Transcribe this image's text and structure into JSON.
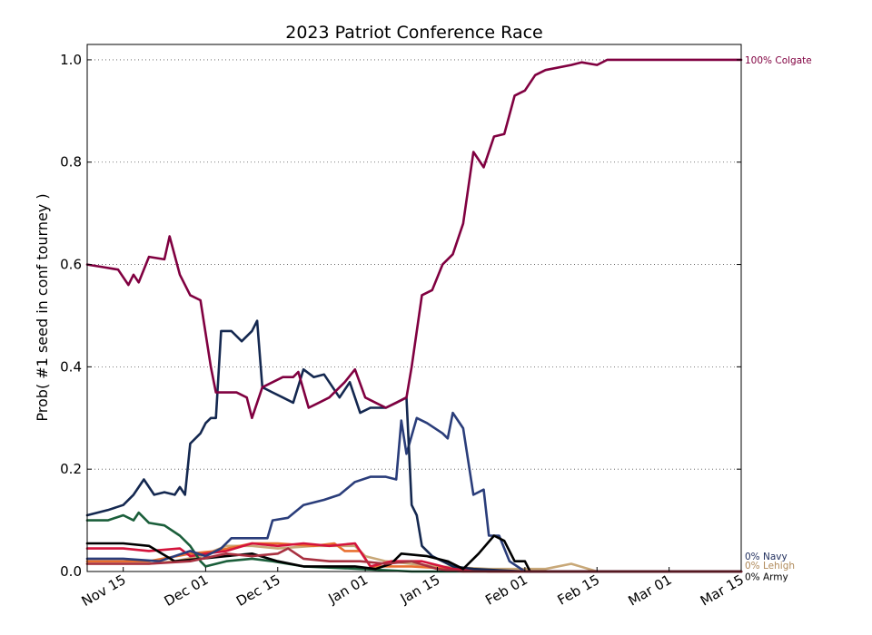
{
  "chart_data": {
    "type": "line",
    "title": "2023 Patriot Conference Race",
    "xlabel": "",
    "ylabel": "Prob( #1 seed in conf tourney )",
    "xlim": [
      "2022-11-08",
      "2023-03-15"
    ],
    "ylim": [
      0,
      1.03
    ],
    "grid": "y-dotted",
    "xticks": [
      {
        "date": "2022-11-15",
        "label": "Nov 15"
      },
      {
        "date": "2022-12-01",
        "label": "Dec 01"
      },
      {
        "date": "2022-12-15",
        "label": "Dec 15"
      },
      {
        "date": "2023-01-01",
        "label": "Jan 01"
      },
      {
        "date": "2023-01-15",
        "label": "Jan 15"
      },
      {
        "date": "2023-02-01",
        "label": "Feb 01"
      },
      {
        "date": "2023-02-15",
        "label": "Feb 15"
      },
      {
        "date": "2023-03-01",
        "label": "Mar 01"
      },
      {
        "date": "2023-03-15",
        "label": "Mar 15"
      }
    ],
    "yticks": [
      {
        "value": 0.0,
        "label": "0.0"
      },
      {
        "value": 0.2,
        "label": "0.2"
      },
      {
        "value": 0.4,
        "label": "0.4"
      },
      {
        "value": 0.6,
        "label": "0.6"
      },
      {
        "value": 0.8,
        "label": "0.8"
      },
      {
        "value": 1.0,
        "label": "1.0"
      }
    ],
    "end_labels": [
      {
        "text": "100% Colgate",
        "value": 1.0,
        "color": "#800040"
      },
      {
        "text": "0% Navy",
        "value": 0.03,
        "color": "#1f2d5c"
      },
      {
        "text": "0% Lehigh",
        "value": 0.012,
        "color": "#b08a5a"
      },
      {
        "text": "0% Army",
        "value": -0.006,
        "color": "#000000"
      }
    ],
    "series": [
      {
        "color": "#c8a878",
        "values": [
          [
            "2022-11-08",
            0.015
          ],
          [
            "2022-11-20",
            0.015
          ],
          [
            "2022-11-25",
            0.02
          ],
          [
            "2022-11-30",
            0.03
          ],
          [
            "2022-12-05",
            0.05
          ],
          [
            "2022-12-10",
            0.05
          ],
          [
            "2022-12-15",
            0.045
          ],
          [
            "2022-12-22",
            0.05
          ],
          [
            "2022-12-30",
            0.05
          ],
          [
            "2023-01-01",
            0.03
          ],
          [
            "2023-01-05",
            0.02
          ],
          [
            "2023-01-15",
            0.01
          ],
          [
            "2023-01-25",
            0.005
          ],
          [
            "2023-02-05",
            0.005
          ],
          [
            "2023-02-10",
            0.015
          ],
          [
            "2023-02-15",
            0.0
          ],
          [
            "2023-03-15",
            0.0
          ]
        ]
      },
      {
        "color": "#e87030",
        "values": [
          [
            "2022-11-08",
            0.02
          ],
          [
            "2022-11-20",
            0.02
          ],
          [
            "2022-11-28",
            0.035
          ],
          [
            "2022-12-03",
            0.04
          ],
          [
            "2022-12-10",
            0.055
          ],
          [
            "2022-12-15",
            0.055
          ],
          [
            "2022-12-22",
            0.05
          ],
          [
            "2022-12-26",
            0.055
          ],
          [
            "2022-12-28",
            0.04
          ],
          [
            "2022-12-31",
            0.04
          ],
          [
            "2023-01-02",
            0.01
          ],
          [
            "2023-01-10",
            0.01
          ],
          [
            "2023-01-18",
            0.005
          ],
          [
            "2023-01-25",
            0.0
          ],
          [
            "2023-03-15",
            0.0
          ]
        ]
      },
      {
        "color": "#d4143c",
        "values": [
          [
            "2022-11-08",
            0.045
          ],
          [
            "2022-11-15",
            0.045
          ],
          [
            "2022-11-20",
            0.04
          ],
          [
            "2022-11-26",
            0.045
          ],
          [
            "2022-11-28",
            0.03
          ],
          [
            "2022-12-01",
            0.035
          ],
          [
            "2022-12-05",
            0.04
          ],
          [
            "2022-12-10",
            0.055
          ],
          [
            "2022-12-15",
            0.05
          ],
          [
            "2022-12-20",
            0.055
          ],
          [
            "2022-12-25",
            0.05
          ],
          [
            "2022-12-30",
            0.055
          ],
          [
            "2023-01-02",
            0.01
          ],
          [
            "2023-01-06",
            0.02
          ],
          [
            "2023-01-12",
            0.02
          ],
          [
            "2023-01-18",
            0.005
          ],
          [
            "2023-01-25",
            0.0
          ],
          [
            "2023-03-15",
            0.0
          ]
        ]
      },
      {
        "color": "#1a5e3a",
        "values": [
          [
            "2022-11-08",
            0.1
          ],
          [
            "2022-11-12",
            0.1
          ],
          [
            "2022-11-15",
            0.11
          ],
          [
            "2022-11-17",
            0.1
          ],
          [
            "2022-11-18",
            0.115
          ],
          [
            "2022-11-20",
            0.095
          ],
          [
            "2022-11-23",
            0.09
          ],
          [
            "2022-11-26",
            0.07
          ],
          [
            "2022-11-28",
            0.05
          ],
          [
            "2022-11-30",
            0.02
          ],
          [
            "2022-12-01",
            0.01
          ],
          [
            "2022-12-05",
            0.02
          ],
          [
            "2022-12-10",
            0.025
          ],
          [
            "2022-12-14",
            0.02
          ],
          [
            "2022-12-20",
            0.01
          ],
          [
            "2022-12-31",
            0.005
          ],
          [
            "2023-01-10",
            0.0
          ],
          [
            "2023-03-15",
            0.0
          ]
        ]
      },
      {
        "color": "#2a3d7a",
        "values": [
          [
            "2022-11-08",
            0.025
          ],
          [
            "2022-11-15",
            0.025
          ],
          [
            "2022-11-22",
            0.02
          ],
          [
            "2022-11-28",
            0.04
          ],
          [
            "2022-12-01",
            0.03
          ],
          [
            "2022-12-04",
            0.045
          ],
          [
            "2022-12-06",
            0.065
          ],
          [
            "2022-12-10",
            0.065
          ],
          [
            "2022-12-13",
            0.065
          ],
          [
            "2022-12-14",
            0.1
          ],
          [
            "2022-12-17",
            0.105
          ],
          [
            "2022-12-20",
            0.13
          ],
          [
            "2022-12-24",
            0.14
          ],
          [
            "2022-12-27",
            0.15
          ],
          [
            "2022-12-30",
            0.175
          ],
          [
            "2023-01-02",
            0.185
          ],
          [
            "2023-01-05",
            0.185
          ],
          [
            "2023-01-07",
            0.18
          ],
          [
            "2023-01-08",
            0.295
          ],
          [
            "2023-01-09",
            0.23
          ],
          [
            "2023-01-11",
            0.3
          ],
          [
            "2023-01-13",
            0.29
          ],
          [
            "2023-01-16",
            0.27
          ],
          [
            "2023-01-17",
            0.26
          ],
          [
            "2023-01-18",
            0.31
          ],
          [
            "2023-01-20",
            0.28
          ],
          [
            "2023-01-22",
            0.15
          ],
          [
            "2023-01-24",
            0.16
          ],
          [
            "2023-01-25",
            0.07
          ],
          [
            "2023-01-27",
            0.07
          ],
          [
            "2023-01-29",
            0.02
          ],
          [
            "2023-02-01",
            0.0
          ],
          [
            "2023-03-15",
            0.0
          ]
        ]
      },
      {
        "color": "#142850",
        "values": [
          [
            "2022-11-08",
            0.11
          ],
          [
            "2022-11-12",
            0.12
          ],
          [
            "2022-11-15",
            0.13
          ],
          [
            "2022-11-17",
            0.15
          ],
          [
            "2022-11-19",
            0.18
          ],
          [
            "2022-11-21",
            0.15
          ],
          [
            "2022-11-23",
            0.155
          ],
          [
            "2022-11-25",
            0.15
          ],
          [
            "2022-11-26",
            0.165
          ],
          [
            "2022-11-27",
            0.15
          ],
          [
            "2022-11-28",
            0.25
          ],
          [
            "2022-11-30",
            0.27
          ],
          [
            "2022-12-01",
            0.29
          ],
          [
            "2022-12-02",
            0.3
          ],
          [
            "2022-12-03",
            0.3
          ],
          [
            "2022-12-04",
            0.47
          ],
          [
            "2022-12-06",
            0.47
          ],
          [
            "2022-12-08",
            0.45
          ],
          [
            "2022-12-10",
            0.47
          ],
          [
            "2022-12-11",
            0.49
          ],
          [
            "2022-12-12",
            0.36
          ],
          [
            "2022-12-14",
            0.35
          ],
          [
            "2022-12-16",
            0.34
          ],
          [
            "2022-12-18",
            0.33
          ],
          [
            "2022-12-20",
            0.395
          ],
          [
            "2022-12-22",
            0.38
          ],
          [
            "2022-12-24",
            0.385
          ],
          [
            "2022-12-27",
            0.34
          ],
          [
            "2022-12-29",
            0.37
          ],
          [
            "2022-12-31",
            0.31
          ],
          [
            "2023-01-02",
            0.32
          ],
          [
            "2023-01-05",
            0.32
          ],
          [
            "2023-01-07",
            0.33
          ],
          [
            "2023-01-09",
            0.34
          ],
          [
            "2023-01-10",
            0.13
          ],
          [
            "2023-01-11",
            0.11
          ],
          [
            "2023-01-12",
            0.05
          ],
          [
            "2023-01-14",
            0.03
          ],
          [
            "2023-01-16",
            0.02
          ],
          [
            "2023-01-18",
            0.01
          ],
          [
            "2023-01-22",
            0.005
          ],
          [
            "2023-02-01",
            0.0
          ],
          [
            "2023-03-15",
            0.0
          ]
        ]
      },
      {
        "color": "#000000",
        "values": [
          [
            "2022-11-08",
            0.055
          ],
          [
            "2022-11-15",
            0.055
          ],
          [
            "2022-11-20",
            0.05
          ],
          [
            "2022-11-25",
            0.02
          ],
          [
            "2022-11-30",
            0.025
          ],
          [
            "2022-12-05",
            0.03
          ],
          [
            "2022-12-10",
            0.035
          ],
          [
            "2022-12-15",
            0.02
          ],
          [
            "2022-12-20",
            0.01
          ],
          [
            "2022-12-30",
            0.01
          ],
          [
            "2023-01-03",
            0.005
          ],
          [
            "2023-01-06",
            0.015
          ],
          [
            "2023-01-08",
            0.035
          ],
          [
            "2023-01-13",
            0.03
          ],
          [
            "2023-01-17",
            0.02
          ],
          [
            "2023-01-20",
            0.005
          ],
          [
            "2023-01-23",
            0.035
          ],
          [
            "2023-01-26",
            0.07
          ],
          [
            "2023-01-28",
            0.06
          ],
          [
            "2023-01-30",
            0.02
          ],
          [
            "2023-02-01",
            0.02
          ],
          [
            "2023-02-02",
            0.0
          ],
          [
            "2023-03-15",
            0.0
          ]
        ]
      },
      {
        "color": "#a83040",
        "values": [
          [
            "2022-11-08",
            0.015
          ],
          [
            "2022-11-20",
            0.015
          ],
          [
            "2022-11-28",
            0.02
          ],
          [
            "2022-12-05",
            0.035
          ],
          [
            "2022-12-10",
            0.03
          ],
          [
            "2022-12-15",
            0.035
          ],
          [
            "2022-12-17",
            0.045
          ],
          [
            "2022-12-20",
            0.025
          ],
          [
            "2022-12-25",
            0.02
          ],
          [
            "2022-12-31",
            0.02
          ],
          [
            "2023-01-05",
            0.015
          ],
          [
            "2023-01-10",
            0.02
          ],
          [
            "2023-01-15",
            0.005
          ],
          [
            "2023-01-20",
            0.0
          ],
          [
            "2023-03-15",
            0.0
          ]
        ]
      },
      {
        "color": "#800040",
        "values": [
          [
            "2022-11-08",
            0.6
          ],
          [
            "2022-11-11",
            0.595
          ],
          [
            "2022-11-14",
            0.59
          ],
          [
            "2022-11-16",
            0.56
          ],
          [
            "2022-11-17",
            0.58
          ],
          [
            "2022-11-18",
            0.565
          ],
          [
            "2022-11-20",
            0.615
          ],
          [
            "2022-11-23",
            0.61
          ],
          [
            "2022-11-24",
            0.655
          ],
          [
            "2022-11-26",
            0.58
          ],
          [
            "2022-11-28",
            0.54
          ],
          [
            "2022-11-30",
            0.53
          ],
          [
            "2022-12-02",
            0.4
          ],
          [
            "2022-12-03",
            0.35
          ],
          [
            "2022-12-05",
            0.35
          ],
          [
            "2022-12-07",
            0.35
          ],
          [
            "2022-12-09",
            0.34
          ],
          [
            "2022-12-10",
            0.3
          ],
          [
            "2022-12-12",
            0.36
          ],
          [
            "2022-12-14",
            0.37
          ],
          [
            "2022-12-16",
            0.38
          ],
          [
            "2022-12-18",
            0.38
          ],
          [
            "2022-12-19",
            0.39
          ],
          [
            "2022-12-21",
            0.32
          ],
          [
            "2022-12-23",
            0.33
          ],
          [
            "2022-12-25",
            0.34
          ],
          [
            "2022-12-28",
            0.37
          ],
          [
            "2022-12-30",
            0.395
          ],
          [
            "2023-01-01",
            0.34
          ],
          [
            "2023-01-03",
            0.33
          ],
          [
            "2023-01-05",
            0.32
          ],
          [
            "2023-01-07",
            0.33
          ],
          [
            "2023-01-09",
            0.34
          ],
          [
            "2023-01-10",
            0.4
          ],
          [
            "2023-01-12",
            0.54
          ],
          [
            "2023-01-14",
            0.55
          ],
          [
            "2023-01-16",
            0.6
          ],
          [
            "2023-01-18",
            0.62
          ],
          [
            "2023-01-20",
            0.68
          ],
          [
            "2023-01-22",
            0.82
          ],
          [
            "2023-01-24",
            0.79
          ],
          [
            "2023-01-26",
            0.85
          ],
          [
            "2023-01-28",
            0.855
          ],
          [
            "2023-01-30",
            0.93
          ],
          [
            "2023-02-01",
            0.94
          ],
          [
            "2023-02-03",
            0.97
          ],
          [
            "2023-02-05",
            0.98
          ],
          [
            "2023-02-10",
            0.99
          ],
          [
            "2023-02-12",
            0.995
          ],
          [
            "2023-02-15",
            0.99
          ],
          [
            "2023-02-17",
            1.0
          ],
          [
            "2023-03-15",
            1.0
          ]
        ]
      }
    ]
  }
}
